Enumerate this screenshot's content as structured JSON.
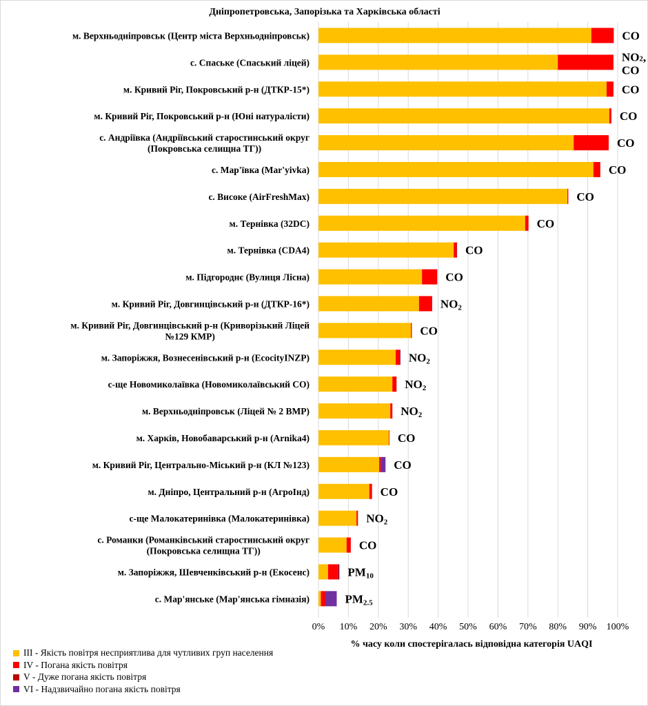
{
  "chart_data": {
    "type": "bar",
    "orientation": "horizontal",
    "stacked": true,
    "title": "Дніпропетровська, Запорізька та Харківська області",
    "xlabel": "% часу коли спостерігалась відповідна категорія UAQI",
    "ylabel": "",
    "xlim": [
      0,
      100
    ],
    "xticks": [
      "0%",
      "10%",
      "20%",
      "30%",
      "40%",
      "50%",
      "60%",
      "70%",
      "80%",
      "90%",
      "100%"
    ],
    "grid": true,
    "legend_position": "bottom-left",
    "categories": [
      "м. Верхньодніпровськ (Центр міста Верхньодніпровськ)",
      "с. Спаське (Спаський ліцей)",
      "м. Кривий Ріг, Покровський р-н (ДТКР-15*)",
      "м. Кривий Ріг, Покровський р-н (Юні натуралісти)",
      "с. Андріївка (Андріївський старостинський округ\n(Покровська селищна ТГ))",
      "с. Мар'ївка (Mar'yivka)",
      "с. Високе (AirFreshMax)",
      "м. Тернівка (32DC)",
      "м. Тернівка (CDA4)",
      "м. Підгороднє (Вулиця Лісна)",
      "м. Кривий Ріг, Довгинцівський р-н (ДТКР-16*)",
      "м. Кривий Ріг, Довгинцівський р-н (Криворізький Ліцей\n№129 КМР)",
      "м. Запоріжжя, Вознесенівський р-н (EcocityINZP)",
      "с-ще Новомиколаївка (Новомиколаївський СО)",
      "м. Верхньодніпровськ (Ліцей № 2 ВМР)",
      "м. Харків, Новобаварський р-н (Arnika4)",
      "м. Кривий Ріг, Центрально-Міський р-н (КЛ №123)",
      "м. Дніпро, Центральний р-н (АгроІнд)",
      "с-ще Малокатеринівка (Малокатеринівка)",
      "с. Романки (Романківський старостинський округ\n(Покровська селищна ТГ))",
      "м. Запоріжжя, Шевченківський р-н (Екосенс)",
      "с. Мар'янське (Мар'янська гімназія)"
    ],
    "pollutant_labels": [
      [
        "CO"
      ],
      [
        "NO",
        "2",
        ", CO"
      ],
      [
        "CO"
      ],
      [
        "CO"
      ],
      [
        "CO"
      ],
      [
        "CO"
      ],
      [
        "CO"
      ],
      [
        "CO"
      ],
      [
        "CO"
      ],
      [
        "CO"
      ],
      [
        "NO",
        "2"
      ],
      [
        "CO"
      ],
      [
        "NO",
        "2"
      ],
      [
        "NO",
        "2"
      ],
      [
        "NO",
        "2"
      ],
      [
        "CO"
      ],
      [
        "CO"
      ],
      [
        "CO"
      ],
      [
        "NO",
        "2"
      ],
      [
        "CO"
      ],
      [
        "PM",
        "10"
      ],
      [
        "PM",
        "2.5"
      ]
    ],
    "series": [
      {
        "name": "III - Якість повітря несприятлива для чутливих груп населення",
        "color": "#FFC000",
        "values": [
          91.2,
          80.0,
          96.3,
          97.2,
          85.3,
          91.9,
          83.2,
          69.1,
          45.2,
          34.6,
          33.6,
          30.9,
          25.8,
          24.7,
          24.0,
          23.5,
          20.3,
          17.0,
          12.7,
          9.4,
          3.2,
          0.8
        ]
      },
      {
        "name": "IV - Погана якість повітря",
        "color": "#FF0000",
        "values": [
          7.5,
          18.6,
          2.3,
          0.7,
          11.7,
          2.3,
          0.3,
          1.1,
          0.8,
          5.1,
          4.4,
          0.3,
          1.2,
          1.2,
          0.7,
          0.2,
          0.5,
          0.9,
          0.4,
          1.4,
          3.2,
          1.3
        ]
      },
      {
        "name": "V - Дуже погана якість повітря",
        "color": "#C00000",
        "values": [
          0,
          0,
          0,
          0,
          0,
          0,
          0,
          0,
          0.3,
          0,
          0,
          0,
          0.3,
          0.2,
          0,
          0,
          0,
          0,
          0.1,
          0,
          0.4,
          0.3
        ]
      },
      {
        "name": "VI - Надзвичайно погана якість повітря",
        "color": "#7030A0",
        "values": [
          0,
          0,
          0,
          0,
          0,
          0,
          0,
          0,
          0,
          0,
          0,
          0,
          0.1,
          0,
          0,
          0,
          1.6,
          0,
          0,
          0,
          0.2,
          3.7
        ]
      }
    ]
  }
}
